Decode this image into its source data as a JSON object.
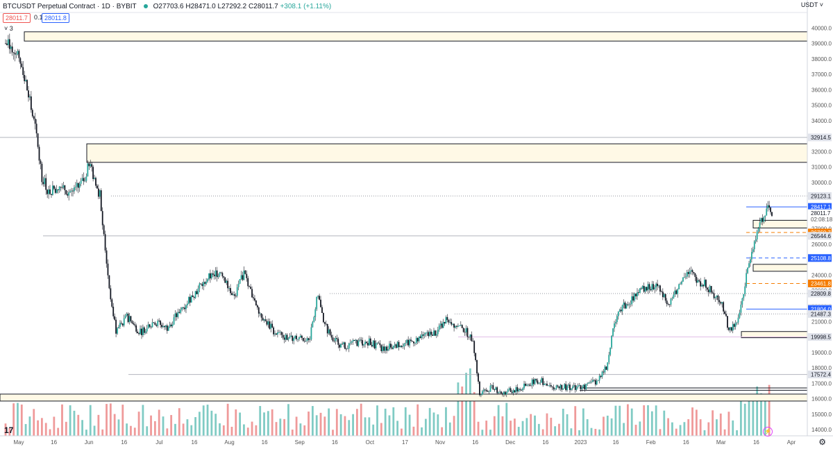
{
  "header": {
    "symbol": "BTCUSDT Perpetual Contract · 1D · BYBIT",
    "open": "O27703.6",
    "high": "H28471.0",
    "low": "L27292.2",
    "close": "C28011.7",
    "change": "+308.1 (+1.11%)",
    "sell_price": "28011.7",
    "spread": "0.1",
    "buy_price": "28011.8",
    "currency": "USDT",
    "countdown": "02:08:18",
    "bars_collapsed": "3"
  },
  "colors": {
    "up": "#26a69a",
    "down": "#ef5350",
    "zone_fill": "#fff9e6",
    "blue": "#2962ff",
    "orange": "#f57c00",
    "grey": "#555555"
  },
  "chart_data": {
    "type": "candlestick",
    "y_range": [
      13600,
      41000
    ],
    "x_labels": [
      "May",
      "16",
      "Jun",
      "16",
      "Jul",
      "16",
      "Aug",
      "16",
      "Sep",
      "16",
      "Oct",
      "17",
      "Nov",
      "16",
      "Dec",
      "16",
      "2023",
      "16",
      "Feb",
      "16",
      "Mar",
      "16",
      "Apr"
    ],
    "y_ticks": [
      14000,
      15000,
      16000,
      17000,
      18000,
      19000,
      20000,
      21000,
      22000,
      23000,
      24000,
      25000,
      26000,
      27000,
      28000,
      29000,
      30000,
      31000,
      32000,
      33000,
      34000,
      35000,
      36000,
      37000,
      38000,
      39000,
      40000
    ],
    "price_labels": [
      {
        "value": 32914.5,
        "style": "grey"
      },
      {
        "value": 29123.1,
        "style": "grey"
      },
      {
        "value": 28417.1,
        "style": "blue"
      },
      {
        "value": 28011.7,
        "style": "current"
      },
      {
        "value": 26760.7,
        "style": "orange"
      },
      {
        "value": 26544.6,
        "style": "grey"
      },
      {
        "value": 25108.8,
        "style": "blue"
      },
      {
        "value": 23461.8,
        "style": "orange"
      },
      {
        "value": 22809.8,
        "style": "grey"
      },
      {
        "value": 21878.8,
        "style": "grey"
      },
      {
        "value": 21804.0,
        "style": "blue"
      },
      {
        "value": 21487.3,
        "style": "grey"
      },
      {
        "value": 19998.5,
        "style": "grey"
      },
      {
        "value": 17572.4,
        "style": "grey"
      }
    ],
    "zones": [
      {
        "from": 39150,
        "to": 39750
      },
      {
        "from": 31300,
        "to": 32500
      },
      {
        "from": 27050,
        "to": 27550
      },
      {
        "from": 24250,
        "to": 24700
      },
      {
        "from": 19950,
        "to": 20350
      },
      {
        "from": 15850,
        "to": 16300
      }
    ],
    "levels": [
      {
        "value": 26544.6,
        "style": "grey"
      },
      {
        "value": 29123.1,
        "style": "dotted"
      },
      {
        "value": 22809.8,
        "style": "dotted"
      },
      {
        "value": 21487.3,
        "style": "dotted"
      },
      {
        "value": 17572.4,
        "style": "grey"
      },
      {
        "value": 19998.5,
        "style": "pink"
      },
      {
        "value": 16700,
        "style": "black"
      },
      {
        "value": 16550,
        "style": "black"
      },
      {
        "value": 28417.1,
        "style": "blue"
      },
      {
        "value": 25108.8,
        "style": "blue-dashed"
      },
      {
        "value": 21804.0,
        "style": "blue"
      },
      {
        "value": 26760.7,
        "style": "orange-dashed"
      },
      {
        "value": 23461.8,
        "style": "orange-dashed"
      },
      {
        "value": 32914.5,
        "style": "grey"
      }
    ],
    "close_path": [
      [
        0,
        39000
      ],
      [
        8,
        38600
      ],
      [
        12,
        37600
      ],
      [
        16,
        36000
      ],
      [
        22,
        33500
      ],
      [
        27,
        30400
      ],
      [
        32,
        29400
      ],
      [
        40,
        29800
      ],
      [
        50,
        29300
      ],
      [
        58,
        30100
      ],
      [
        63,
        31400
      ],
      [
        66,
        30000
      ],
      [
        70,
        29200
      ],
      [
        77,
        23200
      ],
      [
        82,
        20400
      ],
      [
        90,
        21300
      ],
      [
        100,
        20300
      ],
      [
        110,
        21000
      ],
      [
        120,
        20600
      ],
      [
        135,
        22300
      ],
      [
        150,
        23800
      ],
      [
        160,
        24300
      ],
      [
        170,
        22500
      ],
      [
        177,
        24200
      ],
      [
        180,
        23300
      ],
      [
        190,
        21400
      ],
      [
        200,
        20300
      ],
      [
        210,
        19900
      ],
      [
        220,
        20000
      ],
      [
        225,
        19600
      ],
      [
        232,
        22800
      ],
      [
        236,
        20900
      ],
      [
        242,
        20000
      ],
      [
        250,
        19400
      ],
      [
        260,
        19600
      ],
      [
        270,
        19700
      ],
      [
        280,
        19200
      ],
      [
        290,
        19500
      ],
      [
        300,
        19600
      ],
      [
        310,
        20100
      ],
      [
        320,
        20300
      ],
      [
        328,
        21200
      ],
      [
        335,
        20700
      ],
      [
        340,
        20500
      ],
      [
        347,
        19900
      ],
      [
        352,
        16300
      ],
      [
        360,
        16700
      ],
      [
        370,
        16400
      ],
      [
        380,
        16600
      ],
      [
        386,
        16800
      ],
      [
        392,
        17100
      ],
      [
        397,
        17200
      ],
      [
        402,
        16800
      ],
      [
        410,
        16800
      ],
      [
        420,
        16700
      ],
      [
        430,
        16800
      ],
      [
        440,
        17200
      ],
      [
        447,
        18200
      ],
      [
        452,
        20900
      ],
      [
        458,
        21900
      ],
      [
        470,
        22900
      ],
      [
        478,
        23300
      ],
      [
        486,
        23200
      ],
      [
        493,
        22000
      ],
      [
        500,
        23300
      ],
      [
        507,
        24300
      ],
      [
        515,
        23600
      ],
      [
        520,
        23400
      ],
      [
        525,
        22800
      ],
      [
        532,
        22300
      ],
      [
        537,
        20400
      ],
      [
        542,
        20700
      ],
      [
        547,
        22500
      ],
      [
        551,
        24300
      ],
      [
        555,
        25500
      ],
      [
        560,
        27500
      ],
      [
        566,
        28200
      ],
      [
        569,
        28011.7
      ]
    ],
    "total_days": 600
  }
}
